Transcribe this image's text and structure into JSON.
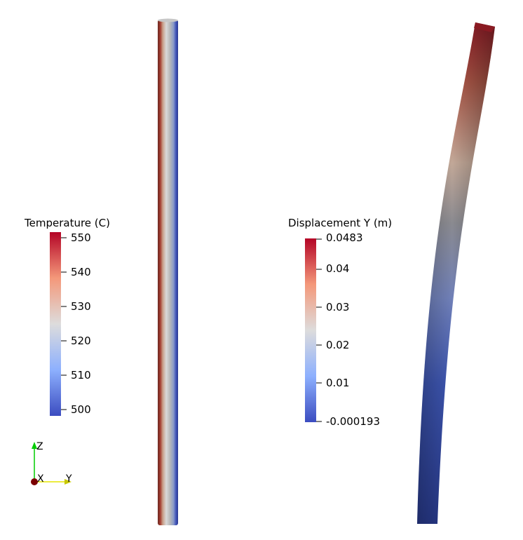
{
  "left_view": {
    "legend": {
      "title": "Temperature (C)",
      "ticks": [
        "550",
        "540",
        "530",
        "520",
        "510",
        "500"
      ]
    }
  },
  "right_view": {
    "legend": {
      "title": "Displacement Y (m)",
      "ticks": [
        "0.0483",
        "0.04",
        "0.03",
        "0.02",
        "0.01",
        "-0.000193"
      ]
    }
  },
  "orientation_axes": {
    "z": "Z",
    "x": "X",
    "y": "Y"
  },
  "colors": {
    "colormap_high": "#b40426",
    "colormap_mid": "#dddcdc",
    "colormap_low": "#3b4cc0",
    "axis_z": "#00cc00",
    "axis_y": "#e6e600",
    "axis_x": "#7a0000"
  }
}
